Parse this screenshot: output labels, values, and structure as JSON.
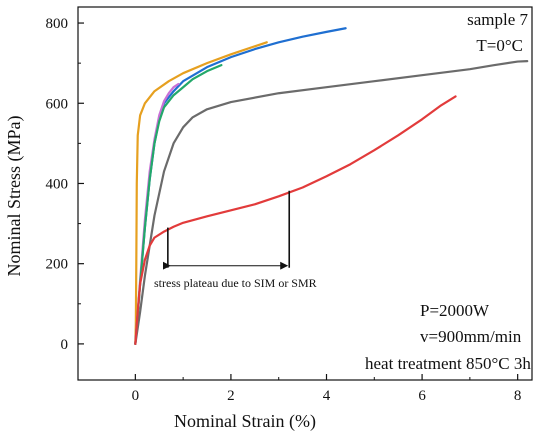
{
  "chart_data": {
    "type": "line",
    "xlabel": "Nominal Strain (%)",
    "ylabel": "Nominal Stress (MPa)",
    "xlim": [
      -1.2,
      8.3
    ],
    "ylim": [
      -90,
      840
    ],
    "xticks": [
      0,
      2,
      4,
      6,
      8
    ],
    "yticks": [
      0,
      200,
      400,
      600,
      800
    ],
    "grid": false,
    "legend": "none",
    "series": [
      {
        "color": "#e6a020",
        "points": [
          [
            0,
            0
          ],
          [
            0.01,
            50
          ],
          [
            0.02,
            200
          ],
          [
            0.03,
            400
          ],
          [
            0.05,
            520
          ],
          [
            0.1,
            570
          ],
          [
            0.2,
            600
          ],
          [
            0.4,
            630
          ],
          [
            0.7,
            655
          ],
          [
            1.0,
            675
          ],
          [
            1.5,
            700
          ],
          [
            2.0,
            722
          ],
          [
            2.5,
            742
          ],
          [
            2.75,
            752
          ]
        ]
      },
      {
        "color": "#1f6fd1",
        "points": [
          [
            0,
            0
          ],
          [
            0.1,
            150
          ],
          [
            0.2,
            290
          ],
          [
            0.3,
            410
          ],
          [
            0.4,
            500
          ],
          [
            0.5,
            560
          ],
          [
            0.6,
            600
          ],
          [
            0.8,
            630
          ],
          [
            1.0,
            655
          ],
          [
            1.5,
            690
          ],
          [
            2.0,
            715
          ],
          [
            2.5,
            735
          ],
          [
            3.0,
            752
          ],
          [
            3.5,
            766
          ],
          [
            4.0,
            778
          ],
          [
            4.4,
            787
          ]
        ]
      },
      {
        "color": "#c971d6",
        "points": [
          [
            0,
            0
          ],
          [
            0.1,
            160
          ],
          [
            0.2,
            310
          ],
          [
            0.3,
            430
          ],
          [
            0.4,
            510
          ],
          [
            0.5,
            570
          ],
          [
            0.6,
            605
          ],
          [
            0.7,
            625
          ],
          [
            0.8,
            640
          ],
          [
            0.9,
            648
          ]
        ]
      },
      {
        "color": "#23a86a",
        "points": [
          [
            0,
            0
          ],
          [
            0.1,
            150
          ],
          [
            0.2,
            290
          ],
          [
            0.3,
            410
          ],
          [
            0.4,
            500
          ],
          [
            0.5,
            555
          ],
          [
            0.6,
            590
          ],
          [
            0.8,
            620
          ],
          [
            1.0,
            640
          ],
          [
            1.2,
            660
          ],
          [
            1.5,
            680
          ],
          [
            1.8,
            695
          ]
        ]
      },
      {
        "color": "#6b6b6b",
        "points": [
          [
            0,
            0
          ],
          [
            0.1,
            80
          ],
          [
            0.2,
            170
          ],
          [
            0.4,
            320
          ],
          [
            0.6,
            430
          ],
          [
            0.8,
            500
          ],
          [
            1.0,
            540
          ],
          [
            1.2,
            565
          ],
          [
            1.5,
            585
          ],
          [
            2.0,
            603
          ],
          [
            3.0,
            625
          ],
          [
            4.0,
            640
          ],
          [
            5.0,
            655
          ],
          [
            6.0,
            670
          ],
          [
            7.0,
            685
          ],
          [
            7.5,
            695
          ],
          [
            8.0,
            704
          ],
          [
            8.2,
            705
          ]
        ]
      },
      {
        "color": "#e23b3b",
        "points": [
          [
            0,
            0
          ],
          [
            0.05,
            80
          ],
          [
            0.1,
            150
          ],
          [
            0.2,
            210
          ],
          [
            0.3,
            245
          ],
          [
            0.4,
            265
          ],
          [
            0.6,
            280
          ],
          [
            0.8,
            292
          ],
          [
            1.0,
            302
          ],
          [
            1.5,
            318
          ],
          [
            2.0,
            333
          ],
          [
            2.5,
            348
          ],
          [
            3.0,
            368
          ],
          [
            3.5,
            390
          ],
          [
            4.0,
            418
          ],
          [
            4.5,
            448
          ],
          [
            5.0,
            483
          ],
          [
            5.5,
            520
          ],
          [
            6.0,
            560
          ],
          [
            6.4,
            595
          ],
          [
            6.7,
            617
          ]
        ]
      }
    ],
    "annotations": {
      "sample": "sample 7",
      "temperature": "T=0°C",
      "plateau_label": "stress plateau due to SIM or SMR",
      "power": "P=2000W",
      "speed": "v=900mm/min",
      "heat_treatment": "heat treatment  850°C 3h"
    },
    "plateau_bracket": {
      "x_start": 0.68,
      "x_end": 3.22,
      "y_arrow": 195,
      "left_bar_top": 290,
      "right_bar_top": 382
    }
  }
}
